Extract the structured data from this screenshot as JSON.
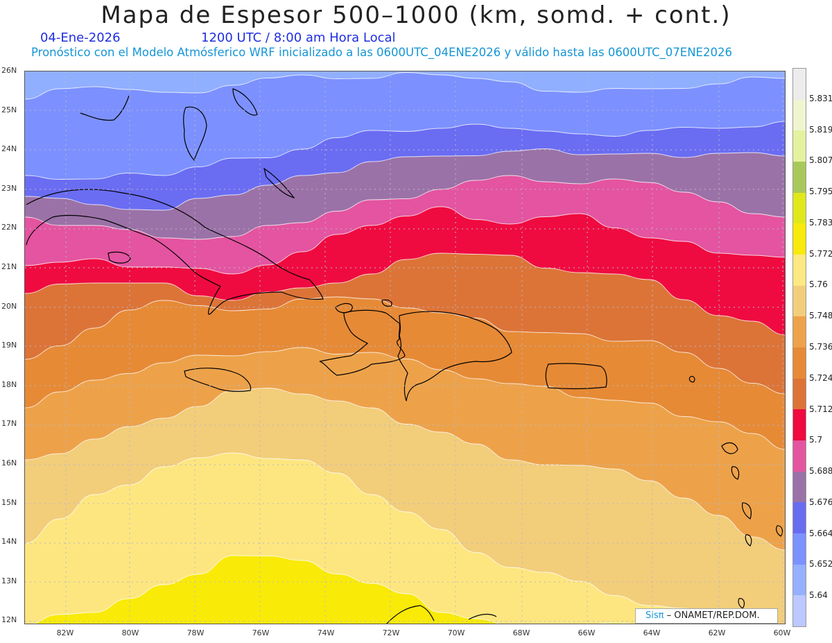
{
  "header": {
    "title": "Mapa de Espesor 500–1000 (km, somd. + cont.)",
    "date": "04-Ene-2026",
    "time": "1200 UTC / 8:00 am Hora Local",
    "subtitle": "Pronóstico con el Modelo Atmósferico WRF inicializado a las 0600UTC_04ENE2026 y válido hasta las  0600UTC_07ENE2026"
  },
  "axes": {
    "lat_labels": [
      "26N",
      "25N",
      "24N",
      "23N",
      "22N",
      "21N",
      "20N",
      "19N",
      "18N",
      "17N",
      "16N",
      "15N",
      "14N",
      "13N",
      "12N"
    ],
    "lon_labels": [
      "82W",
      "80W",
      "78W",
      "76W",
      "74W",
      "72W",
      "70W",
      "68W",
      "66W",
      "64W",
      "62W",
      "60W"
    ]
  },
  "colorbar": {
    "labels": [
      "5.831",
      "5.819",
      "5.807",
      "5.795",
      "5.783",
      "5.772",
      "5.76",
      "5.748",
      "5.736",
      "5.724",
      "5.712",
      "5.7",
      "5.688",
      "5.676",
      "5.664",
      "5.652",
      "5.64"
    ],
    "colors": [
      "#ececec",
      "#f0f5d0",
      "#e4f2a0",
      "#a8c85c",
      "#e0e81c",
      "#f8ea0a",
      "#fee883",
      "#f2ce7c",
      "#eea24a",
      "#e68a36",
      "#dd7336",
      "#ef0a40",
      "#e455a0",
      "#9a72a8",
      "#6a6cf0",
      "#7c92ff",
      "#96b0ff",
      "#bcc8ff"
    ],
    "contour_bands": [
      "#91afff",
      "#7c91ff",
      "#6a6df2",
      "#9b72a7",
      "#e454a0",
      "#ef0b40",
      "#dc7438",
      "#e68a36",
      "#eda24a",
      "#f2cd7a",
      "#fde680",
      "#f9ea08"
    ]
  },
  "credit": {
    "brand": "Sisπ",
    "text": " – ONAMET/REP.DOM."
  }
}
